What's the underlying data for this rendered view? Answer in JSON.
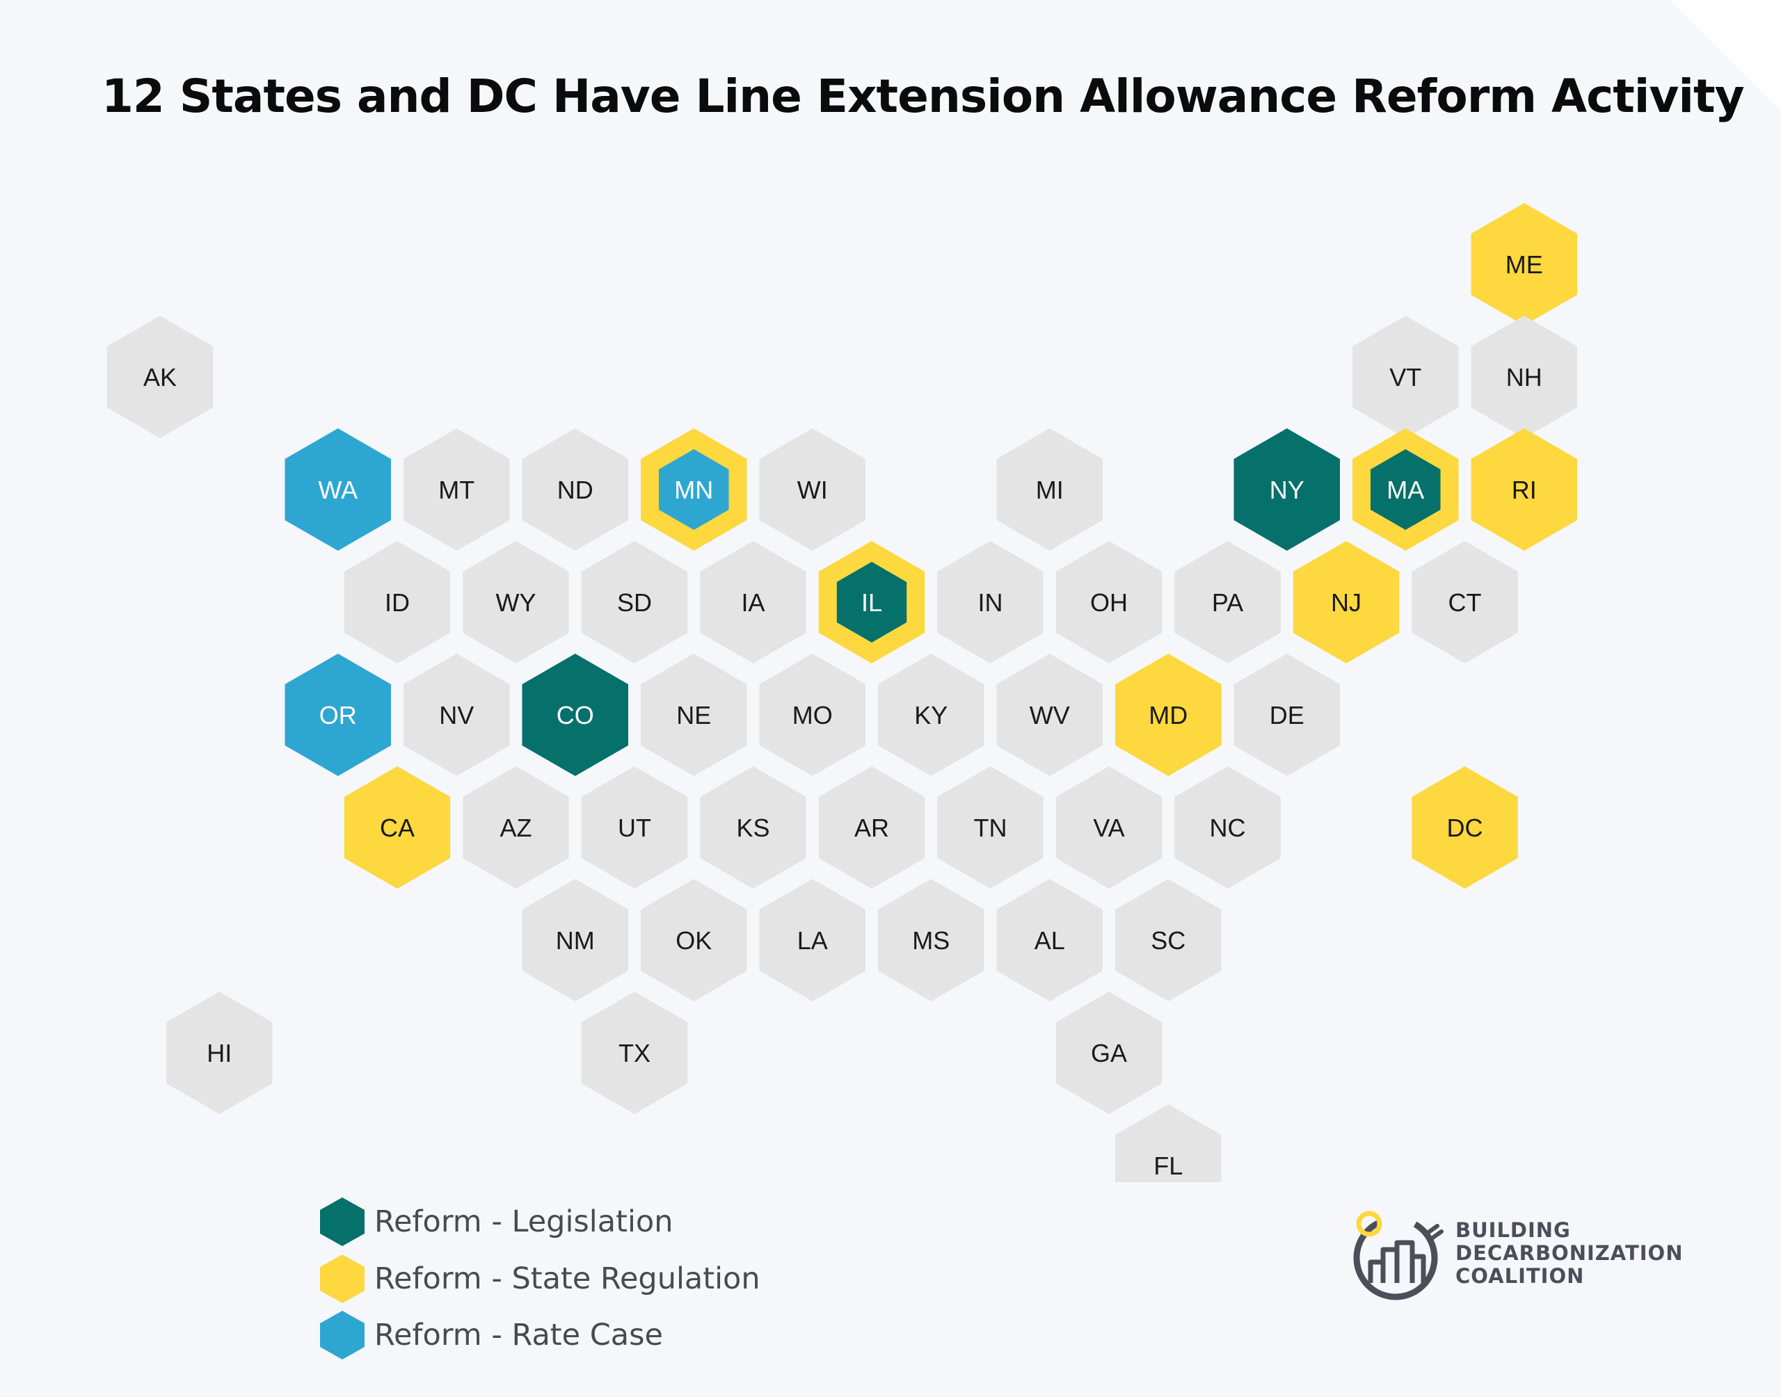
{
  "title": "12 States and DC Have Line Extension Allowance Reform Activity",
  "colors": {
    "none": "#e4e4e4",
    "legislation": "#06706a",
    "regulation": "#fdd83f",
    "ratecase": "#2ea6d2",
    "label_dark": "#1a1a1a",
    "label_light": "#ffffff"
  },
  "states": [
    {
      "code": "ME",
      "row": 0,
      "col": 11.5,
      "fill": "regulation"
    },
    {
      "code": "AK",
      "row": 1,
      "col": 0.0,
      "fill": "none"
    },
    {
      "code": "VT",
      "row": 1,
      "col": 10.5,
      "fill": "none"
    },
    {
      "code": "NH",
      "row": 1,
      "col": 11.5,
      "fill": "none"
    },
    {
      "code": "WA",
      "row": 2,
      "col": 1.5,
      "fill": "ratecase"
    },
    {
      "code": "MT",
      "row": 2,
      "col": 2.5,
      "fill": "none"
    },
    {
      "code": "ND",
      "row": 2,
      "col": 3.5,
      "fill": "none"
    },
    {
      "code": "MN",
      "row": 2,
      "col": 4.5,
      "fill": "ratecase",
      "ring": "regulation"
    },
    {
      "code": "WI",
      "row": 2,
      "col": 5.5,
      "fill": "none"
    },
    {
      "code": "MI",
      "row": 2,
      "col": 7.5,
      "fill": "none"
    },
    {
      "code": "NY",
      "row": 2,
      "col": 9.5,
      "fill": "legislation"
    },
    {
      "code": "MA",
      "row": 2,
      "col": 10.5,
      "fill": "legislation",
      "ring": "regulation"
    },
    {
      "code": "RI",
      "row": 2,
      "col": 11.5,
      "fill": "regulation"
    },
    {
      "code": "ID",
      "row": 3,
      "col": 2.0,
      "fill": "none"
    },
    {
      "code": "WY",
      "row": 3,
      "col": 3.0,
      "fill": "none"
    },
    {
      "code": "SD",
      "row": 3,
      "col": 4.0,
      "fill": "none"
    },
    {
      "code": "IA",
      "row": 3,
      "col": 5.0,
      "fill": "none"
    },
    {
      "code": "IL",
      "row": 3,
      "col": 6.0,
      "fill": "legislation",
      "ring": "regulation"
    },
    {
      "code": "IN",
      "row": 3,
      "col": 7.0,
      "fill": "none"
    },
    {
      "code": "OH",
      "row": 3,
      "col": 8.0,
      "fill": "none"
    },
    {
      "code": "PA",
      "row": 3,
      "col": 9.0,
      "fill": "none"
    },
    {
      "code": "NJ",
      "row": 3,
      "col": 10.0,
      "fill": "regulation"
    },
    {
      "code": "CT",
      "row": 3,
      "col": 11.0,
      "fill": "none"
    },
    {
      "code": "OR",
      "row": 4,
      "col": 1.5,
      "fill": "ratecase"
    },
    {
      "code": "NV",
      "row": 4,
      "col": 2.5,
      "fill": "none"
    },
    {
      "code": "CO",
      "row": 4,
      "col": 3.5,
      "fill": "legislation"
    },
    {
      "code": "NE",
      "row": 4,
      "col": 4.5,
      "fill": "none"
    },
    {
      "code": "MO",
      "row": 4,
      "col": 5.5,
      "fill": "none"
    },
    {
      "code": "KY",
      "row": 4,
      "col": 6.5,
      "fill": "none"
    },
    {
      "code": "WV",
      "row": 4,
      "col": 7.5,
      "fill": "none"
    },
    {
      "code": "MD",
      "row": 4,
      "col": 8.5,
      "fill": "regulation"
    },
    {
      "code": "DE",
      "row": 4,
      "col": 9.5,
      "fill": "none"
    },
    {
      "code": "CA",
      "row": 5,
      "col": 2.0,
      "fill": "regulation"
    },
    {
      "code": "AZ",
      "row": 5,
      "col": 3.0,
      "fill": "none"
    },
    {
      "code": "UT",
      "row": 5,
      "col": 4.0,
      "fill": "none"
    },
    {
      "code": "KS",
      "row": 5,
      "col": 5.0,
      "fill": "none"
    },
    {
      "code": "AR",
      "row": 5,
      "col": 6.0,
      "fill": "none"
    },
    {
      "code": "TN",
      "row": 5,
      "col": 7.0,
      "fill": "none"
    },
    {
      "code": "VA",
      "row": 5,
      "col": 8.0,
      "fill": "none"
    },
    {
      "code": "NC",
      "row": 5,
      "col": 9.0,
      "fill": "none"
    },
    {
      "code": "DC",
      "row": 5,
      "col": 11.0,
      "fill": "regulation"
    },
    {
      "code": "NM",
      "row": 6,
      "col": 3.5,
      "fill": "none"
    },
    {
      "code": "OK",
      "row": 6,
      "col": 4.5,
      "fill": "none"
    },
    {
      "code": "LA",
      "row": 6,
      "col": 5.5,
      "fill": "none"
    },
    {
      "code": "MS",
      "row": 6,
      "col": 6.5,
      "fill": "none"
    },
    {
      "code": "AL",
      "row": 6,
      "col": 7.5,
      "fill": "none"
    },
    {
      "code": "SC",
      "row": 6,
      "col": 8.5,
      "fill": "none"
    },
    {
      "code": "HI",
      "row": 7,
      "col": 0.5,
      "fill": "none"
    },
    {
      "code": "TX",
      "row": 7,
      "col": 4.0,
      "fill": "none"
    },
    {
      "code": "GA",
      "row": 7,
      "col": 8.0,
      "fill": "none"
    },
    {
      "code": "FL",
      "row": 8,
      "col": 8.5,
      "fill": "none"
    }
  ],
  "legend": [
    {
      "key": "legislation",
      "label": "Reform - Legislation"
    },
    {
      "key": "regulation",
      "label": "Reform - State Regulation"
    },
    {
      "key": "ratecase",
      "label": "Reform - Rate Case"
    }
  ],
  "logo": {
    "line1": "BUILDING",
    "line2": "DECARBONIZATION",
    "line3": "COALITION"
  }
}
